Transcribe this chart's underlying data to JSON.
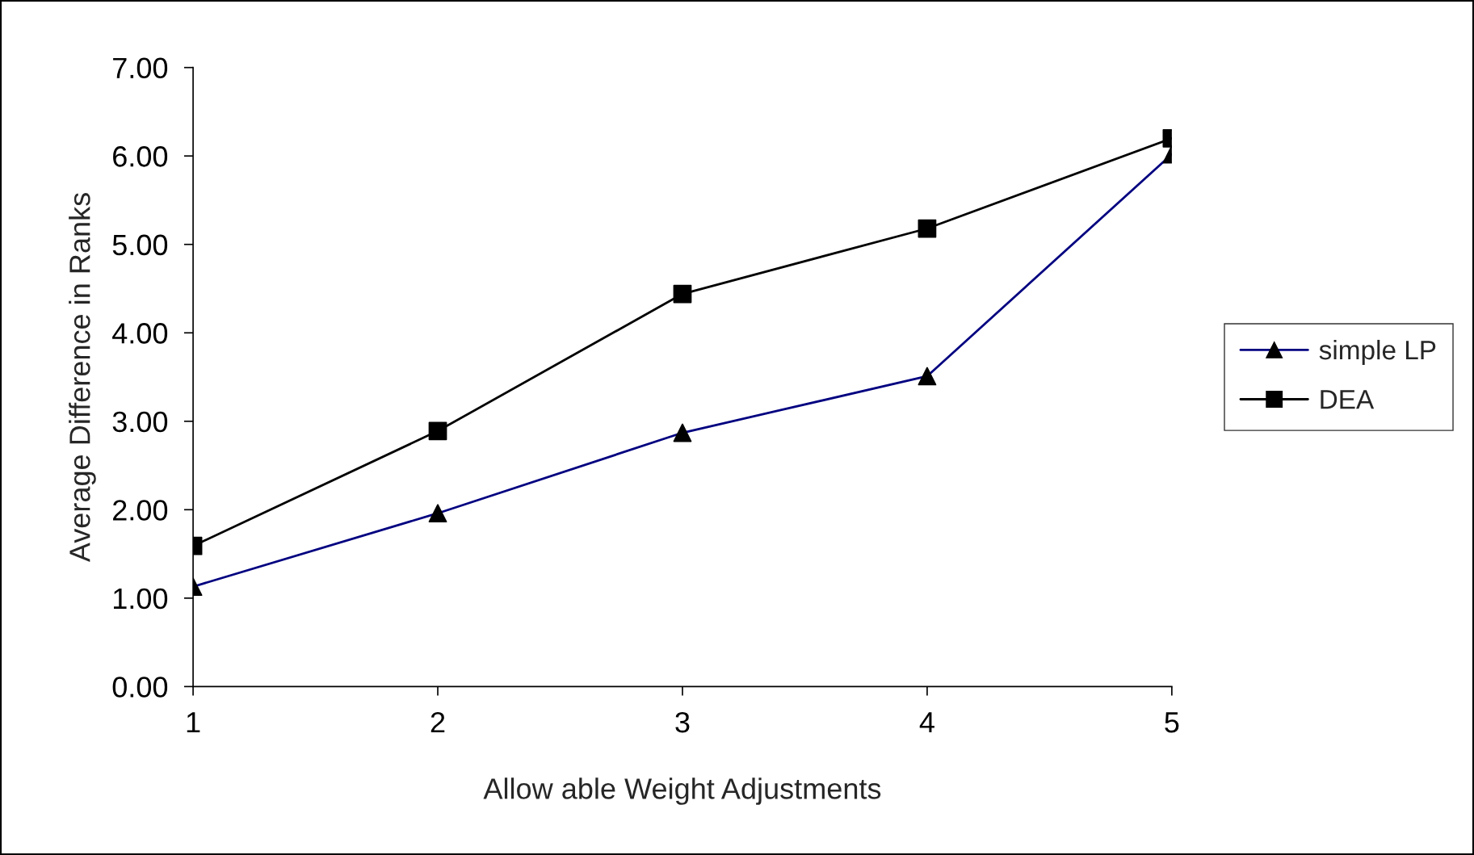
{
  "chart_data": {
    "type": "line",
    "xlabel": "Allow able Weight Adjustments",
    "ylabel": "Average Difference in Ranks",
    "categories": [
      "1",
      "2",
      "3",
      "4",
      "5"
    ],
    "series": [
      {
        "name": "simple LP",
        "color": "#000080",
        "marker": "triangle",
        "values": [
          1.13,
          1.96,
          2.87,
          3.51,
          6.02
        ]
      },
      {
        "name": "DEA",
        "color": "#000000",
        "marker": "square",
        "values": [
          1.59,
          2.89,
          4.44,
          5.18,
          6.2
        ]
      }
    ],
    "ylim": [
      0,
      7
    ],
    "yticks": [
      {
        "value": 0,
        "label": "0.00"
      },
      {
        "value": 1,
        "label": "1.00"
      },
      {
        "value": 2,
        "label": "2.00"
      },
      {
        "value": 3,
        "label": "3.00"
      },
      {
        "value": 4,
        "label": "4.00"
      },
      {
        "value": 5,
        "label": "5.00"
      },
      {
        "value": 6,
        "label": "6.00"
      },
      {
        "value": 7,
        "label": "7.00"
      }
    ],
    "grid": false,
    "legend": "right",
    "line_style": "solid"
  }
}
